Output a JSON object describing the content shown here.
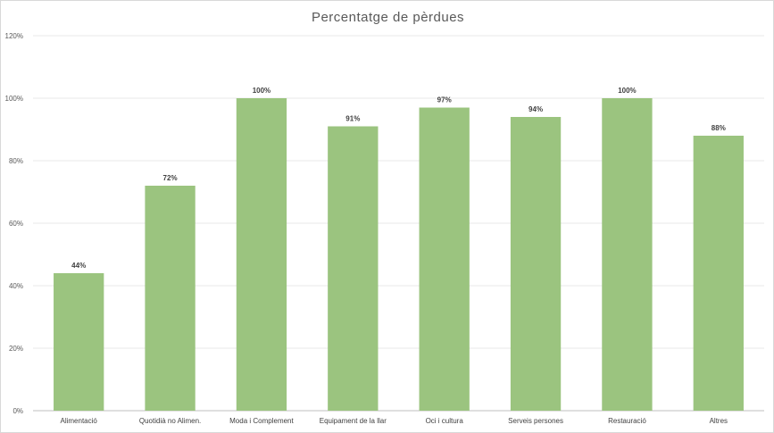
{
  "chart_data": {
    "type": "bar",
    "title": "Percentatge de pèrdues",
    "categories": [
      "Alimentació",
      "Quotidià no Alimen.",
      "Moda i Complement",
      "Equipament de la llar",
      "Oci i cultura",
      "Serveis persones",
      "Restauració",
      "Altres"
    ],
    "values": [
      44,
      72,
      100,
      91,
      97,
      94,
      100,
      88
    ],
    "data_labels": [
      "44%",
      "72%",
      "100%",
      "91%",
      "97%",
      "94%",
      "100%",
      "88%"
    ],
    "yticks": [
      "0%",
      "20%",
      "40%",
      "60%",
      "80%",
      "100%",
      "120%"
    ],
    "ylim": [
      0,
      120
    ],
    "grid": true,
    "legend": "none",
    "bar_color": "#9bc47f"
  }
}
